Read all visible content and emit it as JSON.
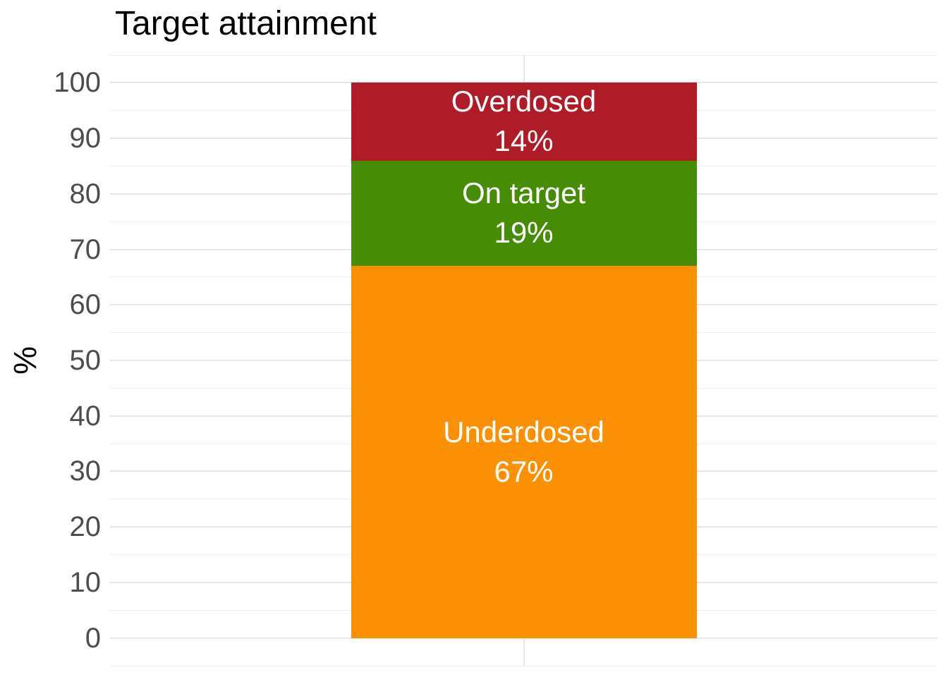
{
  "chart_data": {
    "type": "bar",
    "variant": "stacked-single-column",
    "title": "Target attainment",
    "ylabel": "%",
    "xlabel": "",
    "categories": [
      ""
    ],
    "series": [
      {
        "name": "Underdosed",
        "value": 67,
        "label_line1": "Underdosed",
        "label_line2": "67%",
        "color": "#FC9003"
      },
      {
        "name": "On target",
        "value": 19,
        "label_line1": "On target",
        "label_line2": "19%",
        "color": "#478C05"
      },
      {
        "name": "Overdosed",
        "value": 14,
        "label_line1": "Overdosed",
        "label_line2": "14%",
        "color": "#B01B28"
      }
    ],
    "stack_order_bottom_to_top": [
      "Underdosed",
      "On target",
      "Overdosed"
    ],
    "ylim": [
      0,
      100
    ],
    "yticks": [
      0,
      10,
      20,
      30,
      40,
      50,
      60,
      70,
      80,
      90,
      100
    ],
    "minor_tick_step": 5,
    "axis_expansion_fraction": 0.05,
    "grid": {
      "horizontal_major": true,
      "horizontal_minor": true,
      "vertical_major_at_category": true
    },
    "legend": "none",
    "colors": {
      "segment_label_text": "#FFFFFF",
      "tick_label": "#4D4D4D",
      "title": "#000000",
      "grid_major": "#E6E6E6",
      "grid_minor": "#EFEFEF",
      "background": "#FFFFFF"
    }
  }
}
